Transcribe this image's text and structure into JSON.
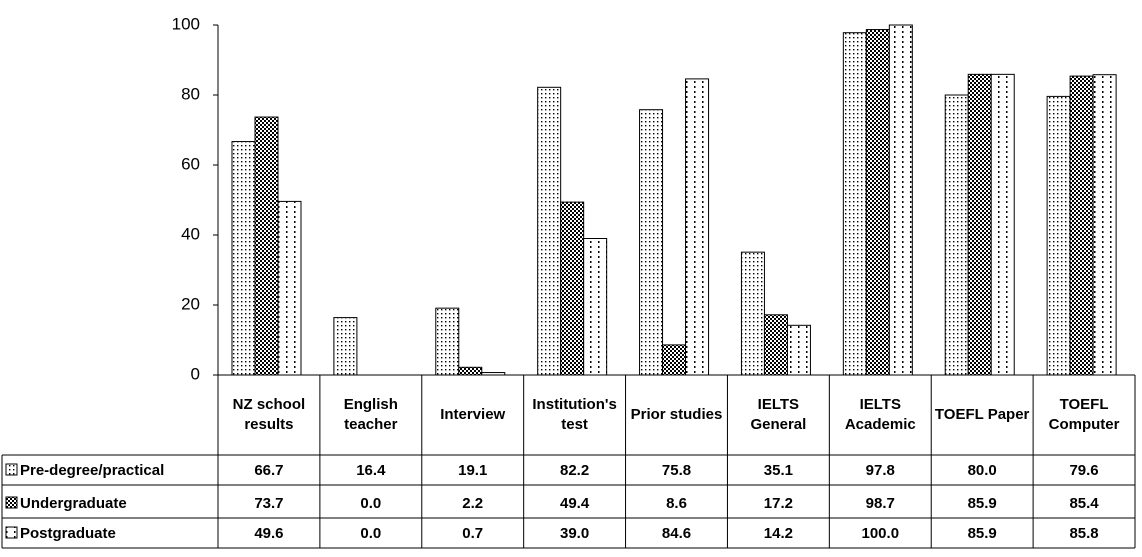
{
  "chart_data": {
    "type": "bar",
    "categories": [
      "NZ school results",
      "English teacher",
      "Interview",
      "Institution's test",
      "Prior studies",
      "IELTS General",
      "IELTS Academic",
      "TOEFL Paper",
      "TOEFL Computer"
    ],
    "series": [
      {
        "name": "Pre-degree/practical",
        "color": "#000000",
        "values": [
          66.7,
          16.4,
          19.1,
          82.2,
          75.8,
          35.1,
          97.8,
          80,
          79.6
        ],
        "value_labels": [
          "66.7",
          "16.4",
          "19.1",
          "82.2",
          "75.8",
          "35.1",
          "97.8",
          "80.0",
          "79.6"
        ]
      },
      {
        "name": "Undergraduate",
        "color": "#000000",
        "values": [
          73.7,
          0,
          2.2,
          49.4,
          8.6,
          17.2,
          98.7,
          85.9,
          85.4
        ],
        "value_labels": [
          "73.7",
          "0.0",
          "2.2",
          "49.4",
          "8.6",
          "17.2",
          "98.7",
          "85.9",
          "85.4"
        ]
      },
      {
        "name": "Postgraduate",
        "color": "#000000",
        "values": [
          49.6,
          0,
          0.7,
          39,
          84.6,
          14.2,
          100,
          85.9,
          85.8
        ],
        "value_labels": [
          "49.6",
          "0.0",
          "0.7",
          "39.0",
          "84.6",
          "14.2",
          "100.0",
          "85.9",
          "85.8"
        ]
      }
    ],
    "ylim": [
      0,
      100
    ],
    "yticks": [
      0,
      20,
      40,
      60,
      80,
      100
    ],
    "grid": false
  }
}
